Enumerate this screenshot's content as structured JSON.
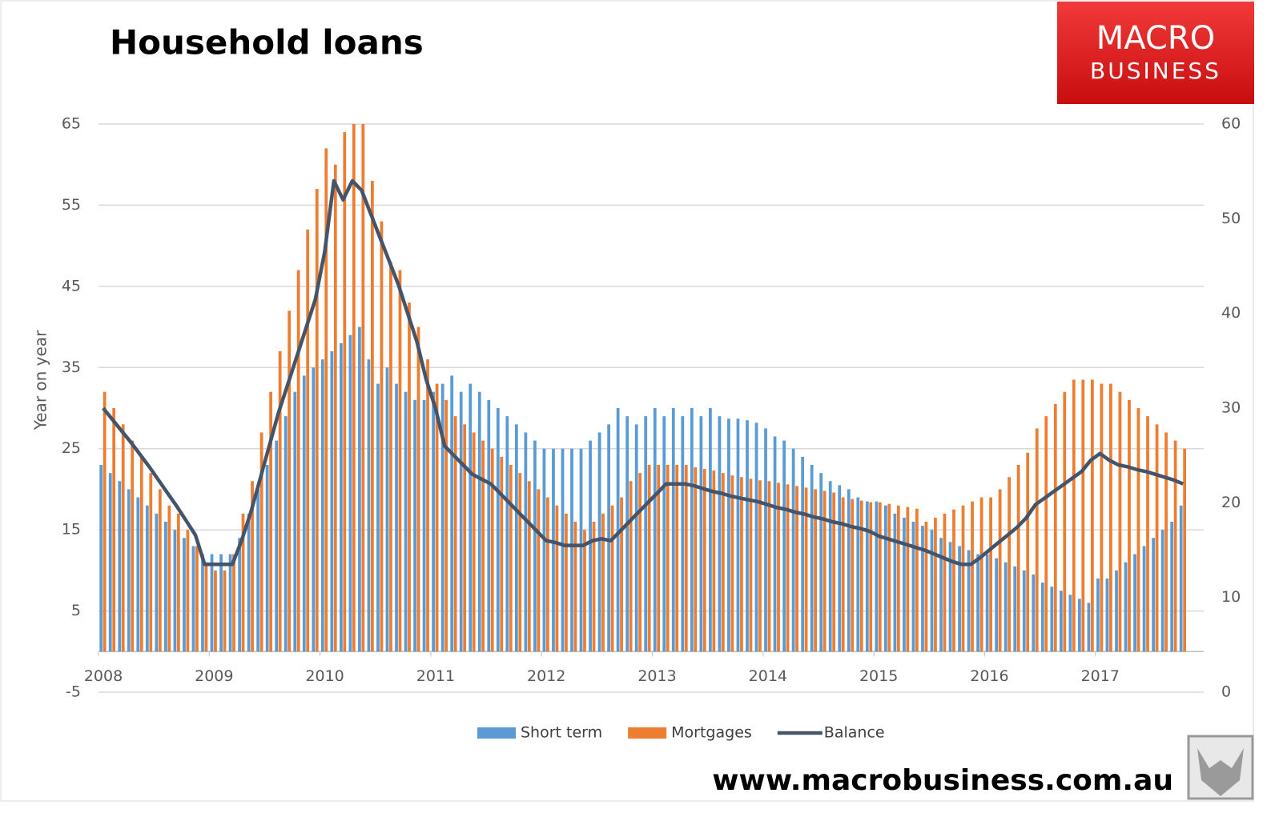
{
  "chart_data": {
    "type": "bar-line",
    "title": "Household loans",
    "y_label": "Year on year",
    "categories": [
      "2008",
      null,
      null,
      null,
      null,
      null,
      null,
      null,
      null,
      null,
      null,
      null,
      "2009",
      null,
      null,
      null,
      null,
      null,
      null,
      null,
      null,
      null,
      null,
      null,
      "2010",
      null,
      null,
      null,
      null,
      null,
      null,
      null,
      null,
      null,
      null,
      null,
      "2011",
      null,
      null,
      null,
      null,
      null,
      null,
      null,
      null,
      null,
      null,
      null,
      "2012",
      null,
      null,
      null,
      null,
      null,
      null,
      null,
      null,
      null,
      null,
      null,
      "2013",
      null,
      null,
      null,
      null,
      null,
      null,
      null,
      null,
      null,
      null,
      null,
      "2014",
      null,
      null,
      null,
      null,
      null,
      null,
      null,
      null,
      null,
      null,
      null,
      "2015",
      null,
      null,
      null,
      null,
      null,
      null,
      null,
      null,
      null,
      null,
      null,
      "2016",
      null,
      null,
      null,
      null,
      null,
      null,
      null,
      null,
      null,
      null,
      null,
      "2017",
      null,
      null,
      null,
      null,
      null,
      null,
      null,
      null,
      null
    ],
    "ylim": [
      -5,
      65
    ],
    "yticks": [
      -5,
      5,
      15,
      25,
      35,
      45,
      55,
      65
    ],
    "y2lim": [
      0,
      60
    ],
    "y2ticks": [
      0,
      10,
      20,
      30,
      40,
      50,
      60
    ],
    "grid": true,
    "legend": "bottom",
    "series": [
      {
        "name": "Short term",
        "type": "bar",
        "color": "#5b9bd5",
        "values": [
          23,
          22,
          21,
          20,
          19,
          18,
          17,
          16,
          15,
          14,
          13,
          12,
          12,
          12,
          12,
          14,
          17,
          20,
          23,
          26,
          29,
          32,
          34,
          35,
          36,
          37,
          38,
          39,
          40,
          36,
          33,
          35,
          33,
          32,
          31,
          31,
          32,
          33,
          34,
          32,
          33,
          32,
          31,
          30,
          29,
          28,
          27,
          26,
          25,
          25,
          25,
          25,
          25,
          26,
          27,
          28,
          30,
          29,
          28,
          29,
          30,
          29,
          30,
          29,
          30,
          29,
          30,
          29,
          28.7,
          28.7,
          28.5,
          28.2,
          27.5,
          26.5,
          26,
          25,
          24,
          23,
          22,
          21,
          20.5,
          20,
          19,
          18.5,
          18.5,
          18,
          17,
          16.5,
          16,
          15.5,
          15,
          14,
          13.5,
          13,
          12.5,
          12,
          12,
          11.5,
          11,
          10.5,
          10,
          9.5,
          8.5,
          8,
          7.5,
          7,
          6.5,
          6,
          9,
          9,
          10,
          11,
          12,
          13,
          14,
          15,
          16,
          18
        ]
      },
      {
        "name": "Mortgages",
        "type": "bar",
        "color": "#ed7d31",
        "values": [
          32,
          30,
          28,
          26,
          24,
          22,
          20,
          18,
          17,
          15,
          13,
          11,
          10,
          10,
          12,
          17,
          21,
          27,
          32,
          37,
          42,
          47,
          52,
          57,
          62,
          60,
          64,
          65,
          65,
          58,
          53,
          48,
          47,
          43,
          40,
          36,
          33,
          31,
          29,
          28,
          27,
          26,
          25,
          24,
          23,
          22,
          21,
          20,
          19,
          18,
          17,
          16,
          15,
          16,
          17,
          18,
          19,
          21,
          22,
          23,
          23,
          23,
          23,
          23,
          22.7,
          22.5,
          22.3,
          22,
          21.7,
          21.5,
          21.3,
          21.1,
          21,
          20.8,
          20.6,
          20.4,
          20.2,
          20,
          19.8,
          19.6,
          19,
          18.8,
          18.6,
          18.4,
          18.4,
          18.2,
          18,
          17.8,
          17.6,
          16,
          16.5,
          17,
          17.5,
          18,
          18.5,
          19,
          19,
          20,
          21.5,
          23,
          24.5,
          27.5,
          29,
          30.5,
          32,
          33.5,
          33.5,
          33.5,
          33,
          33,
          32,
          31,
          30,
          29,
          28,
          27,
          26,
          25
        ]
      },
      {
        "name": "Balance",
        "type": "line",
        "axis": "y2",
        "color": "#44546a",
        "values": [
          30,
          28.8,
          27.6,
          26.4,
          25.1,
          23.8,
          22.4,
          21,
          19.6,
          18.1,
          16.6,
          13.5,
          13.5,
          13.5,
          13.5,
          16,
          19,
          22.5,
          26,
          29.5,
          32.5,
          35.5,
          38.5,
          41.5,
          46.5,
          54,
          52,
          54,
          53,
          50.5,
          48,
          45.5,
          43,
          40,
          37,
          33,
          30,
          26,
          25,
          24,
          23,
          22.5,
          22,
          21,
          20,
          19,
          18,
          17,
          16,
          15.8,
          15.5,
          15.5,
          15.5,
          16,
          16.2,
          16,
          17,
          18,
          19,
          20,
          21,
          22,
          22,
          22,
          21.8,
          21.5,
          21.2,
          21,
          20.7,
          20.5,
          20.3,
          20.1,
          19.8,
          19.5,
          19.3,
          19,
          18.8,
          18.5,
          18.3,
          18,
          17.8,
          17.5,
          17.3,
          17,
          16.5,
          16.2,
          15.9,
          15.6,
          15.3,
          15,
          14.6,
          14.2,
          13.8,
          13.5,
          13.5,
          14.2,
          15,
          15.8,
          16.6,
          17.4,
          18.4,
          19.8,
          20.5,
          21.2,
          21.9,
          22.6,
          23.3,
          24.5,
          25.2,
          24.5,
          24,
          23.8,
          23.5,
          23.3,
          23,
          22.7,
          22.4,
          22
        ]
      }
    ]
  },
  "logo": {
    "line1": "MACRO",
    "line2": "BUSINESS"
  },
  "footer": "www.macrobusiness.com.au"
}
